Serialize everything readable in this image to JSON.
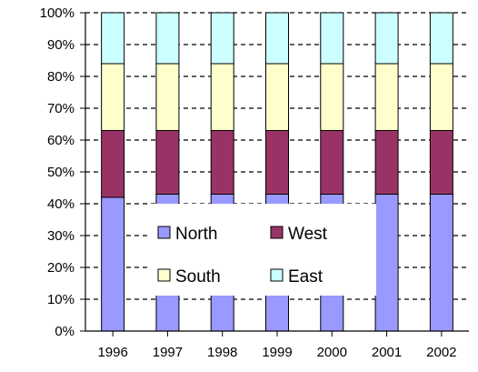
{
  "chart_data": {
    "type": "bar",
    "stacked": "percent",
    "title": "",
    "xlabel": "",
    "ylabel": "",
    "categories": [
      "1996",
      "1997",
      "1998",
      "1999",
      "2000",
      "2001",
      "2002"
    ],
    "ylim": [
      0,
      100
    ],
    "y_ticks": [
      "0%",
      "10%",
      "20%",
      "30%",
      "40%",
      "50%",
      "60%",
      "70%",
      "80%",
      "90%",
      "100%"
    ],
    "grid": "horizontal-dashed",
    "legend_position": "center",
    "series": [
      {
        "name": "North",
        "color": "#9999FF",
        "values": [
          42,
          43,
          43,
          43,
          43,
          43,
          43
        ]
      },
      {
        "name": "West",
        "color": "#993366",
        "values": [
          21,
          20,
          20,
          20,
          20,
          20,
          20
        ]
      },
      {
        "name": "South",
        "color": "#FFFFCC",
        "values": [
          21,
          21,
          21,
          21,
          21,
          21,
          21
        ]
      },
      {
        "name": "East",
        "color": "#CCFFFF",
        "values": [
          16,
          16,
          16,
          16,
          16,
          16,
          16
        ]
      }
    ]
  }
}
